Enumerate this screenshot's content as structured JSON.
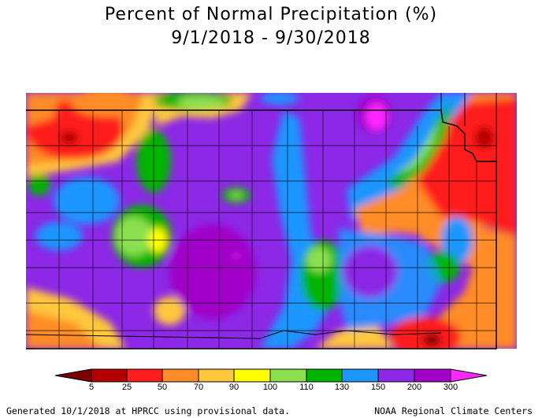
{
  "title": {
    "line1": "Percent of Normal Precipitation (%)",
    "line2": "9/1/2018 - 9/30/2018"
  },
  "legend": {
    "ticks": [
      "5",
      "25",
      "50",
      "70",
      "90",
      "100",
      "110",
      "130",
      "150",
      "200",
      "300"
    ],
    "colors": {
      "lt5": "#7a0000",
      "5_25": "#b40000",
      "25_50": "#ff1e1e",
      "50_70": "#ff8c28",
      "70_90": "#ffc83c",
      "90_100": "#ffff00",
      "100_110": "#8ce050",
      "110_130": "#00b400",
      "130_150": "#1e96ff",
      "150_200": "#8c28e6",
      "200_300": "#a000c8",
      "gt300": "#ff28ff"
    }
  },
  "footer": {
    "left": "Generated 10/1/2018 at HPRCC using provisional data.",
    "right": "NOAA Regional Climate Centers"
  }
}
